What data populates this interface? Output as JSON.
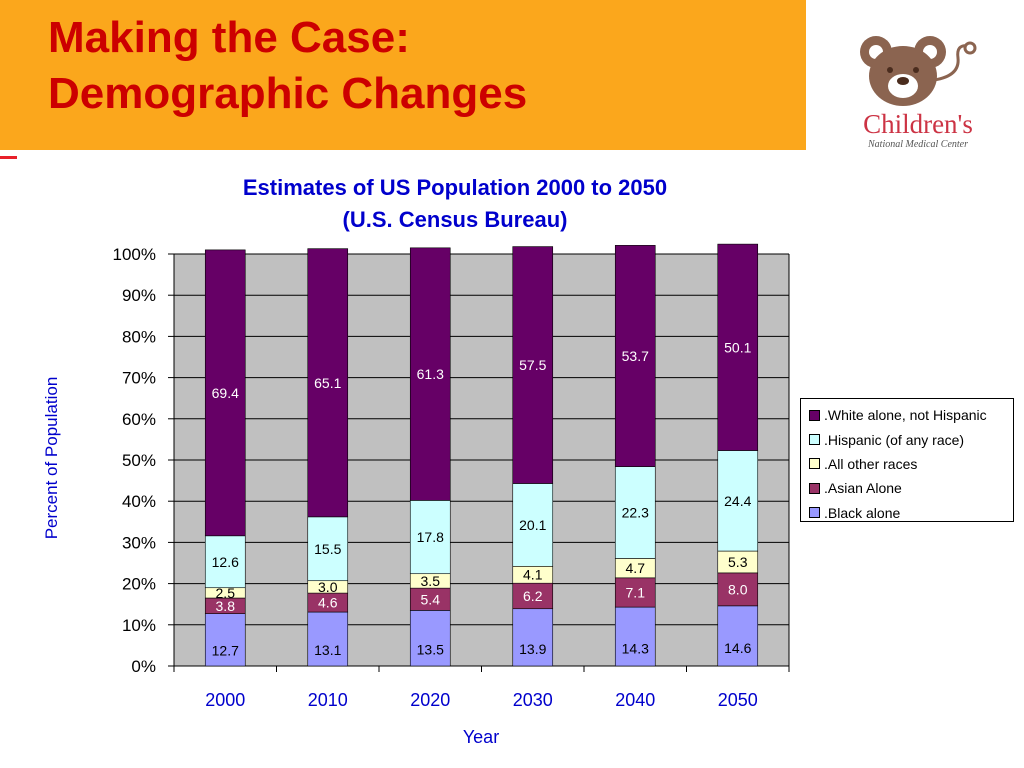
{
  "slide": {
    "title_line1": "Making the Case:",
    "title_line2": "Demographic Changes",
    "logo_text1": "Children's",
    "logo_text2": "National Medical Center"
  },
  "chart_data": {
    "type": "bar",
    "stacked": true,
    "title_line1": "Estimates of US Population 2000 to 2050",
    "title_line2": "(U.S. Census Bureau)",
    "xlabel": "Year",
    "ylabel": "Percent of Population",
    "ylim": [
      0,
      100
    ],
    "yticks": [
      "0%",
      "10%",
      "20%",
      "30%",
      "40%",
      "50%",
      "60%",
      "70%",
      "80%",
      "90%",
      "100%"
    ],
    "categories": [
      "2000",
      "2010",
      "2020",
      "2030",
      "2040",
      "2050"
    ],
    "series": [
      {
        "name": ".Black alone",
        "color": "#9999ff",
        "values": [
          12.7,
          13.1,
          13.5,
          13.9,
          14.3,
          14.6
        ]
      },
      {
        "name": ".Asian Alone",
        "color": "#993366",
        "values": [
          3.8,
          4.6,
          5.4,
          6.2,
          7.1,
          8.0
        ]
      },
      {
        "name": ".All other races",
        "color": "#ffffcc",
        "values": [
          2.5,
          3.0,
          3.5,
          4.1,
          4.7,
          5.3
        ]
      },
      {
        "name": ".Hispanic (of any race)",
        "color": "#ccffff",
        "values": [
          12.6,
          15.5,
          17.8,
          20.1,
          22.3,
          24.4
        ]
      },
      {
        "name": ".White alone, not Hispanic",
        "color": "#660066",
        "values": [
          69.4,
          65.1,
          61.3,
          57.5,
          53.7,
          50.1
        ]
      }
    ],
    "legend_position": "right",
    "plot_background": "#c0c0c0",
    "grid": true
  }
}
